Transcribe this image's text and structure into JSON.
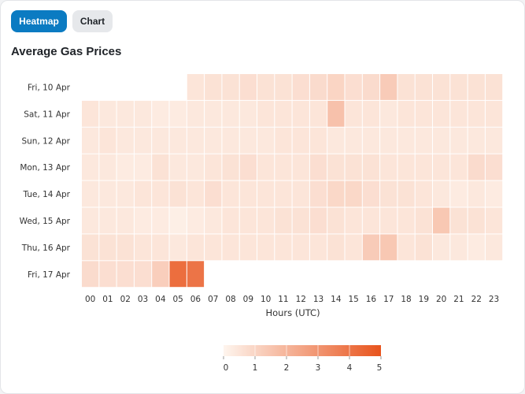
{
  "toolbar": {
    "heatmap_label": "Heatmap",
    "chart_label": "Chart",
    "active": "Heatmap"
  },
  "colors": {
    "accent": "#0b7bc2",
    "scale_low": "#fef5ee",
    "scale_high": "#e8541d"
  },
  "chart_data": {
    "type": "heatmap",
    "title": "Average Gas Prices",
    "xlabel": "Hours (UTC)",
    "ylabel": "",
    "x": [
      "00",
      "01",
      "02",
      "03",
      "04",
      "05",
      "06",
      "07",
      "08",
      "09",
      "10",
      "11",
      "12",
      "13",
      "14",
      "15",
      "16",
      "17",
      "18",
      "19",
      "20",
      "21",
      "22",
      "23"
    ],
    "y": [
      "Fri, 10 Apr",
      "Sat, 11 Apr",
      "Sun, 12 Apr",
      "Mon, 13 Apr",
      "Tue, 14 Apr",
      "Wed, 15 Apr",
      "Thu, 16 Apr",
      "Fri, 17 Apr"
    ],
    "values": [
      [
        null,
        null,
        null,
        null,
        null,
        null,
        0.5,
        0.6,
        0.6,
        0.7,
        0.6,
        0.6,
        0.7,
        0.8,
        1.0,
        0.7,
        0.8,
        1.3,
        0.6,
        0.6,
        0.6,
        0.6,
        0.6,
        0.6
      ],
      [
        0.5,
        0.4,
        0.4,
        0.4,
        0.3,
        0.3,
        0.4,
        0.4,
        0.4,
        0.4,
        0.5,
        0.5,
        0.5,
        0.5,
        1.6,
        0.5,
        0.5,
        0.4,
        0.5,
        0.5,
        0.5,
        0.5,
        0.5,
        0.5
      ],
      [
        0.4,
        0.5,
        0.4,
        0.4,
        0.4,
        0.4,
        0.4,
        0.4,
        0.4,
        0.4,
        0.4,
        0.5,
        0.5,
        0.5,
        0.4,
        0.4,
        0.4,
        0.4,
        0.4,
        0.4,
        0.4,
        0.4,
        0.4,
        0.4
      ],
      [
        0.4,
        0.4,
        0.3,
        0.3,
        0.6,
        0.4,
        0.4,
        0.5,
        0.6,
        0.7,
        0.5,
        0.5,
        0.5,
        0.7,
        0.6,
        0.6,
        0.6,
        0.5,
        0.5,
        0.5,
        0.5,
        0.5,
        0.8,
        0.7
      ],
      [
        0.4,
        0.4,
        0.4,
        0.5,
        0.5,
        0.6,
        0.5,
        0.7,
        0.5,
        0.5,
        0.5,
        0.5,
        0.5,
        0.7,
        0.9,
        0.9,
        0.7,
        0.6,
        0.6,
        0.5,
        0.4,
        0.3,
        0.4,
        0.3
      ],
      [
        0.4,
        0.4,
        0.4,
        0.3,
        0.3,
        0.2,
        0.3,
        0.4,
        0.5,
        0.5,
        0.5,
        0.6,
        0.6,
        0.7,
        0.6,
        0.5,
        0.5,
        0.5,
        0.5,
        0.6,
        1.4,
        0.6,
        0.6,
        0.5
      ],
      [
        0.6,
        0.6,
        0.6,
        0.5,
        0.5,
        0.4,
        0.5,
        0.5,
        0.5,
        0.5,
        0.5,
        0.5,
        0.5,
        0.5,
        0.6,
        0.5,
        1.3,
        1.4,
        0.5,
        0.6,
        0.4,
        0.4,
        0.3,
        0.4
      ],
      [
        0.8,
        0.7,
        0.7,
        0.7,
        1.2,
        4.2,
        4.0,
        null,
        null,
        null,
        null,
        null,
        null,
        null,
        null,
        null,
        null,
        null,
        null,
        null,
        null,
        null,
        null,
        null
      ]
    ],
    "color_scale": {
      "min": 0,
      "max": 5,
      "ticks": [
        0,
        1,
        2,
        3,
        4,
        5
      ],
      "placement": "bottom"
    },
    "grid": false
  }
}
